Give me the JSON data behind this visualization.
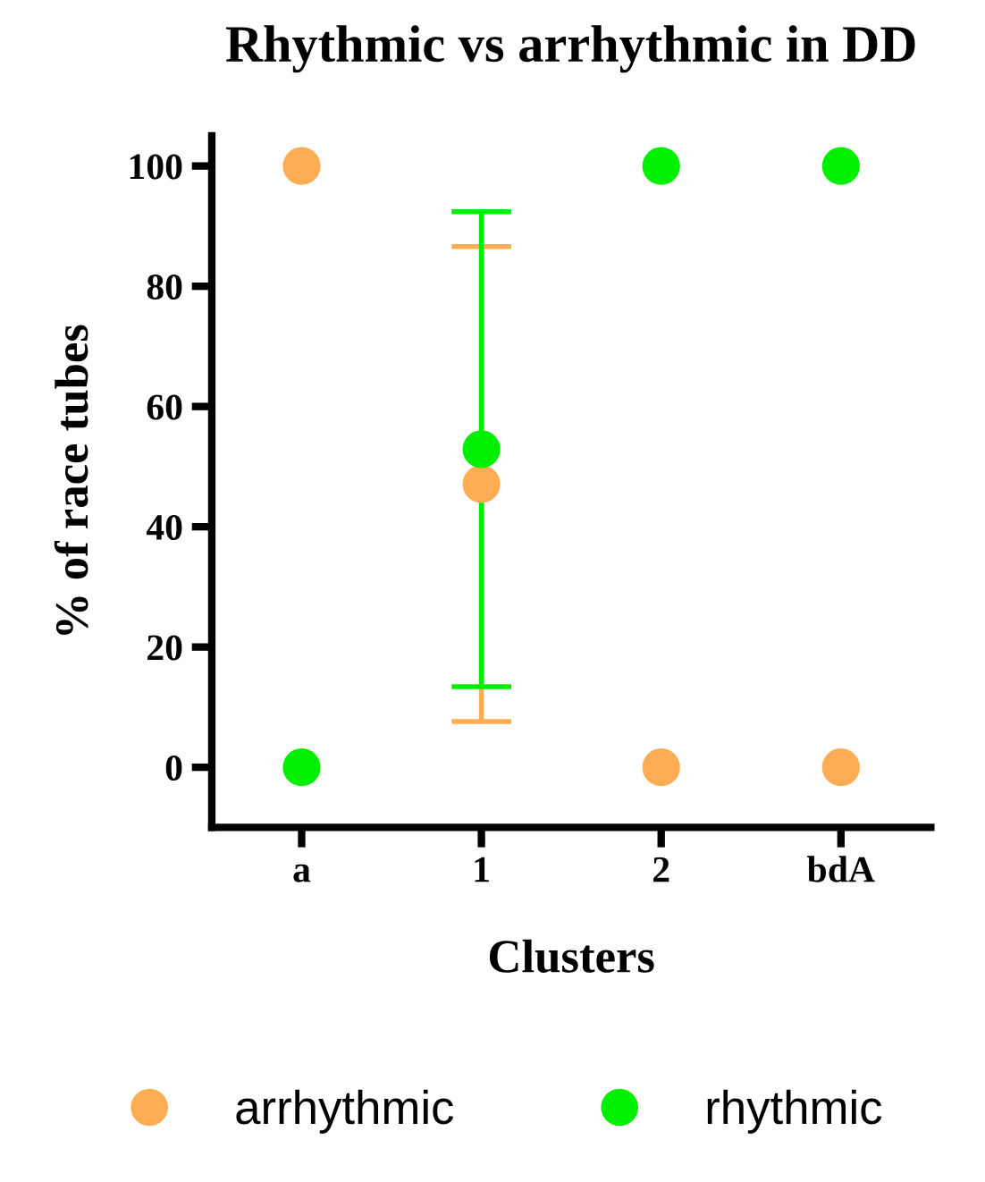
{
  "chart_data": {
    "type": "scatter",
    "title": "Rhythmic vs arrhythmic in DD",
    "xlabel": "Clusters",
    "ylabel": "% of race tubes",
    "categories": [
      "a",
      "1",
      "2",
      "bdA"
    ],
    "series": [
      {
        "name": "arrhythmic",
        "color": "#ffad55",
        "values": [
          100,
          47.1,
          0,
          0
        ],
        "errors": [
          null,
          39.5,
          null,
          null
        ]
      },
      {
        "name": "rhythmic",
        "color": "#00ee00",
        "values": [
          0,
          52.9,
          100,
          100
        ],
        "errors": [
          null,
          39.5,
          null,
          null
        ]
      }
    ],
    "ylim": [
      -10,
      105
    ],
    "yticks": [
      0,
      20,
      40,
      60,
      80,
      100
    ],
    "grid": false,
    "legend": "bottom",
    "marker": "circle"
  }
}
